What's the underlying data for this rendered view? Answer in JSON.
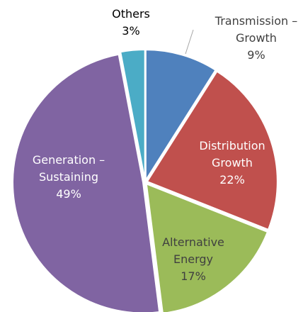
{
  "chart_data": {
    "type": "pie",
    "categories": [
      "Transmission – Growth",
      "Distribution Growth",
      "Alternative Energy",
      "Generation – Sustaining",
      "Others"
    ],
    "values": [
      9,
      22,
      17,
      49,
      3
    ],
    "value_labels": [
      "9%",
      "22%",
      "17%",
      "49%",
      "3%"
    ],
    "colors": [
      "#4f81bd",
      "#c0504d",
      "#9bbb59",
      "#8064a2",
      "#4bacc6"
    ]
  }
}
